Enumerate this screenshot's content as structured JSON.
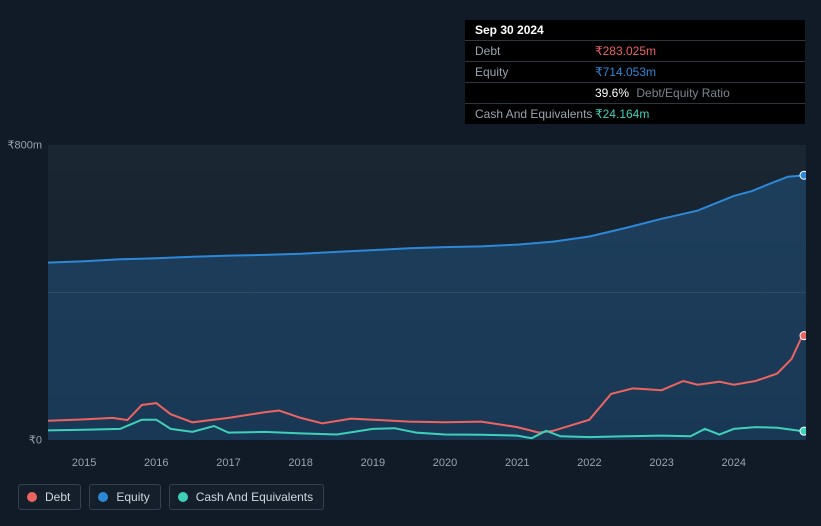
{
  "tooltip": {
    "date": "Sep 30 2024",
    "rows": [
      {
        "label": "Debt",
        "value": "₹283.025m",
        "color": "#ec6461"
      },
      {
        "label": "Equity",
        "value": "₹714.053m",
        "color": "#2d88d8"
      },
      {
        "label": "",
        "value": "39.6%",
        "extra": "Debt/Equity Ratio",
        "color": "#ffffff"
      },
      {
        "label": "Cash And Equivalents",
        "value": "₹24.164m",
        "color": "#3ed1b8"
      }
    ]
  },
  "chart": {
    "type": "area-line",
    "background_top": "#1a2733",
    "background_bottom": "#131e2a",
    "grid_color": "#2a3846",
    "text_color": "#9aa4af",
    "ylim": [
      0,
      800
    ],
    "ylabels": [
      {
        "v": 800,
        "text": "₹800m"
      },
      {
        "v": 0,
        "text": "₹0"
      }
    ],
    "xrange": [
      2014.5,
      2025.0
    ],
    "xlabels": [
      2015,
      2016,
      2017,
      2018,
      2019,
      2020,
      2021,
      2022,
      2023,
      2024
    ],
    "gridlines_y": [
      400
    ],
    "series": {
      "equity": {
        "color": "#2d88d8",
        "fill": "rgba(45,136,216,0.25)",
        "label": "Equity",
        "points": [
          [
            2014.5,
            481
          ],
          [
            2015.0,
            485
          ],
          [
            2015.5,
            490
          ],
          [
            2016.0,
            493
          ],
          [
            2016.5,
            497
          ],
          [
            2017.0,
            500
          ],
          [
            2017.5,
            502
          ],
          [
            2018.0,
            505
          ],
          [
            2018.5,
            510
          ],
          [
            2019.0,
            515
          ],
          [
            2019.5,
            520
          ],
          [
            2020.0,
            523
          ],
          [
            2020.5,
            525
          ],
          [
            2021.0,
            530
          ],
          [
            2021.5,
            538
          ],
          [
            2022.0,
            552
          ],
          [
            2022.5,
            575
          ],
          [
            2023.0,
            600
          ],
          [
            2023.5,
            622
          ],
          [
            2024.0,
            662
          ],
          [
            2024.25,
            675
          ],
          [
            2024.5,
            695
          ],
          [
            2024.75,
            714
          ],
          [
            2025.0,
            718
          ]
        ]
      },
      "debt": {
        "color": "#ec6461",
        "label": "Debt",
        "points": [
          [
            2014.5,
            52
          ],
          [
            2015.0,
            56
          ],
          [
            2015.4,
            60
          ],
          [
            2015.6,
            54
          ],
          [
            2015.8,
            95
          ],
          [
            2016.0,
            100
          ],
          [
            2016.2,
            70
          ],
          [
            2016.5,
            48
          ],
          [
            2017.0,
            60
          ],
          [
            2017.5,
            75
          ],
          [
            2017.7,
            80
          ],
          [
            2018.0,
            60
          ],
          [
            2018.3,
            45
          ],
          [
            2018.7,
            58
          ],
          [
            2019.0,
            55
          ],
          [
            2019.5,
            50
          ],
          [
            2020.0,
            48
          ],
          [
            2020.5,
            50
          ],
          [
            2021.0,
            35
          ],
          [
            2021.3,
            20
          ],
          [
            2021.5,
            25
          ],
          [
            2022.0,
            55
          ],
          [
            2022.3,
            125
          ],
          [
            2022.6,
            140
          ],
          [
            2023.0,
            135
          ],
          [
            2023.3,
            160
          ],
          [
            2023.5,
            150
          ],
          [
            2023.8,
            158
          ],
          [
            2024.0,
            150
          ],
          [
            2024.3,
            160
          ],
          [
            2024.6,
            180
          ],
          [
            2024.8,
            220
          ],
          [
            2024.95,
            283
          ],
          [
            2025.0,
            283
          ]
        ]
      },
      "cash": {
        "color": "#3ed1b8",
        "label": "Cash And Equivalents",
        "points": [
          [
            2014.5,
            26
          ],
          [
            2015.0,
            28
          ],
          [
            2015.5,
            30
          ],
          [
            2015.8,
            55
          ],
          [
            2016.0,
            55
          ],
          [
            2016.2,
            30
          ],
          [
            2016.5,
            22
          ],
          [
            2016.8,
            38
          ],
          [
            2017.0,
            20
          ],
          [
            2017.5,
            22
          ],
          [
            2018.0,
            18
          ],
          [
            2018.5,
            15
          ],
          [
            2019.0,
            30
          ],
          [
            2019.3,
            32
          ],
          [
            2019.6,
            20
          ],
          [
            2020.0,
            15
          ],
          [
            2020.5,
            14
          ],
          [
            2021.0,
            12
          ],
          [
            2021.2,
            5
          ],
          [
            2021.4,
            25
          ],
          [
            2021.6,
            10
          ],
          [
            2022.0,
            8
          ],
          [
            2022.5,
            10
          ],
          [
            2023.0,
            12
          ],
          [
            2023.4,
            10
          ],
          [
            2023.6,
            30
          ],
          [
            2023.8,
            15
          ],
          [
            2024.0,
            30
          ],
          [
            2024.3,
            35
          ],
          [
            2024.6,
            33
          ],
          [
            2024.95,
            24
          ],
          [
            2025.0,
            24
          ]
        ]
      }
    },
    "legend_items": [
      {
        "color": "#ec6461",
        "label": "Debt"
      },
      {
        "color": "#2d88d8",
        "label": "Equity"
      },
      {
        "color": "#3ed1b8",
        "label": "Cash And Equivalents"
      }
    ]
  },
  "colors": {
    "page_bg": "#111b27",
    "legend_border": "#33414f",
    "legend_bg": "#151f2b"
  }
}
